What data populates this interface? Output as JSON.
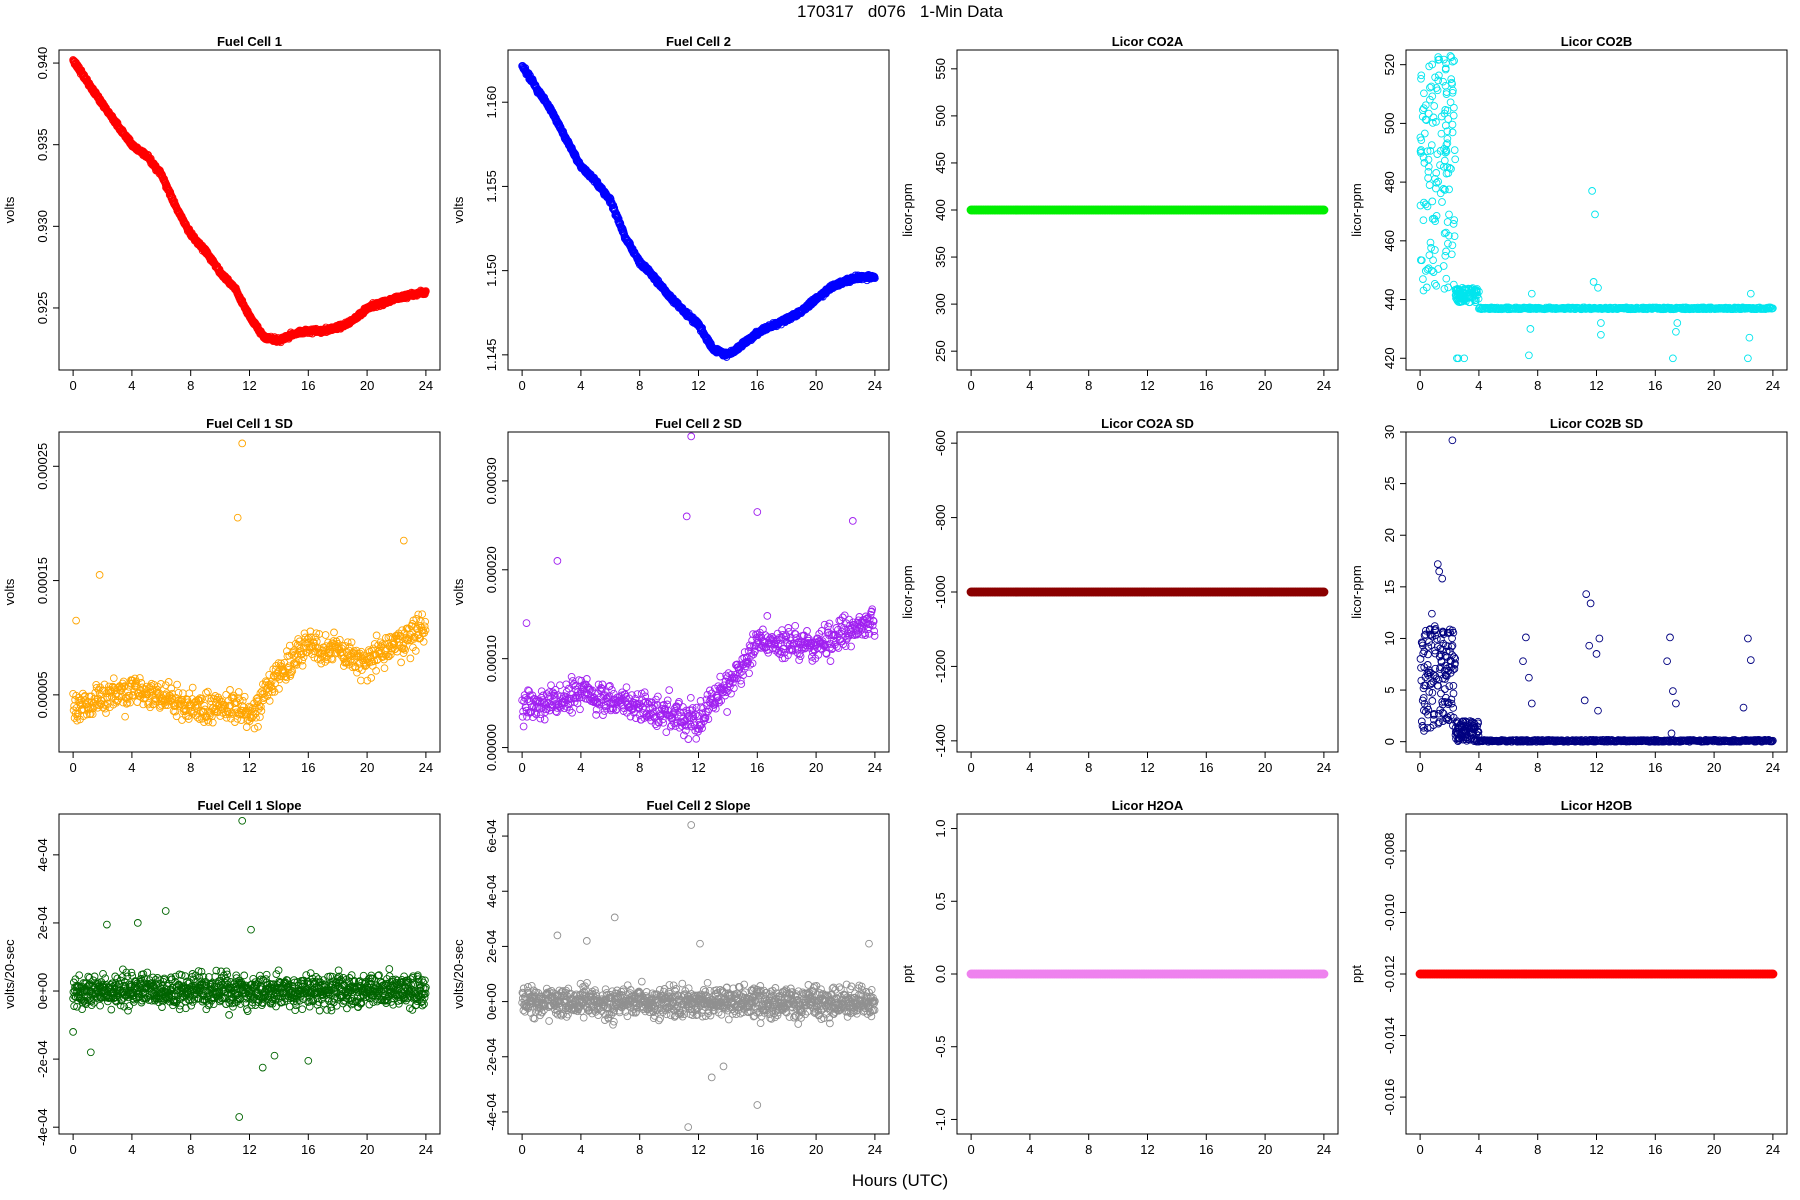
{
  "page": {
    "title": "170317   d076   1-Min Data",
    "xlabel": "Hours (UTC)"
  },
  "chart_data": [
    {
      "type": "scatter",
      "title": "Fuel Cell 1",
      "xlabel": "",
      "ylabel": "volts",
      "color": "#ff0000",
      "xlim": [
        0,
        24
      ],
      "xticks": [
        0,
        4,
        8,
        12,
        16,
        20,
        24
      ],
      "ylim": [
        0.9212,
        0.9408
      ],
      "yticks": [
        "0.925",
        "0.930",
        "0.935",
        "0.940"
      ],
      "series": [
        {
          "trend": [
            [
              0,
              0.9402
            ],
            [
              1,
              0.9388
            ],
            [
              2,
              0.9375
            ],
            [
              3,
              0.9362
            ],
            [
              4,
              0.935
            ],
            [
              5,
              0.9343
            ],
            [
              6,
              0.9332
            ],
            [
              7,
              0.9312
            ],
            [
              8,
              0.9295
            ],
            [
              9,
              0.9285
            ],
            [
              10,
              0.9272
            ],
            [
              11,
              0.9262
            ],
            [
              12,
              0.9245
            ],
            [
              13,
              0.9232
            ],
            [
              14,
              0.923
            ],
            [
              15,
              0.9234
            ],
            [
              16,
              0.9236
            ],
            [
              17,
              0.9236
            ],
            [
              18,
              0.9238
            ],
            [
              19,
              0.9242
            ],
            [
              20,
              0.925
            ],
            [
              21,
              0.9253
            ],
            [
              22,
              0.9256
            ],
            [
              23,
              0.9258
            ],
            [
              24,
              0.926
            ]
          ],
          "noise": 0.00018
        }
      ]
    },
    {
      "type": "scatter",
      "title": "Fuel Cell 2",
      "xlabel": "",
      "ylabel": "volts",
      "color": "#0000ff",
      "xlim": [
        0,
        24
      ],
      "xticks": [
        0,
        4,
        8,
        12,
        16,
        20,
        24
      ],
      "ylim": [
        1.1441,
        1.1631
      ],
      "yticks": [
        "1.145",
        "1.150",
        "1.155",
        "1.160"
      ],
      "series": [
        {
          "trend": [
            [
              0,
              1.1622
            ],
            [
              1,
              1.1608
            ],
            [
              2,
              1.1595
            ],
            [
              3,
              1.1578
            ],
            [
              4,
              1.1562
            ],
            [
              5,
              1.1553
            ],
            [
              6,
              1.1542
            ],
            [
              7,
              1.152
            ],
            [
              8,
              1.1505
            ],
            [
              9,
              1.1496
            ],
            [
              10,
              1.1485
            ],
            [
              11,
              1.1476
            ],
            [
              12,
              1.1468
            ],
            [
              13,
              1.1453
            ],
            [
              14,
              1.145
            ],
            [
              15,
              1.1456
            ],
            [
              16,
              1.1463
            ],
            [
              17,
              1.1467
            ],
            [
              18,
              1.1471
            ],
            [
              19,
              1.1476
            ],
            [
              20,
              1.1483
            ],
            [
              21,
              1.149
            ],
            [
              22,
              1.1494
            ],
            [
              23,
              1.1496
            ],
            [
              24,
              1.1496
            ]
          ],
          "noise": 0.00018
        }
      ]
    },
    {
      "type": "scatter",
      "title": "Licor CO2A",
      "xlabel": "",
      "ylabel": "licor-ppm",
      "color": "#00ee00",
      "xlim": [
        0,
        24
      ],
      "xticks": [
        0,
        4,
        8,
        12,
        16,
        20,
        24
      ],
      "ylim": [
        230,
        570
      ],
      "yticks": [
        "250",
        "300",
        "350",
        "400",
        "450",
        "500",
        "550"
      ],
      "series": [
        {
          "constant": 400,
          "size": "large"
        }
      ]
    },
    {
      "type": "scatter",
      "title": "Licor CO2B",
      "xlabel": "",
      "ylabel": "licor-ppm",
      "color": "#00e5ee",
      "xlim": [
        0,
        24
      ],
      "xticks": [
        0,
        4,
        8,
        12,
        16,
        20,
        24
      ],
      "ylim": [
        416,
        525
      ],
      "yticks": [
        "420",
        "440",
        "460",
        "480",
        "500",
        "520"
      ],
      "series": [
        {
          "baseline": 437,
          "burst": [
            0,
            2.4,
            441,
            523
          ],
          "settle": [
            2.4,
            4.0,
            439,
            444
          ],
          "spikes": [
            [
              3.0,
              420
            ],
            [
              7.4,
              421
            ],
            [
              7.5,
              430
            ],
            [
              7.6,
              442
            ],
            [
              11.7,
              477
            ],
            [
              11.9,
              469
            ],
            [
              11.8,
              446
            ],
            [
              12.1,
              444
            ],
            [
              12.3,
              432
            ],
            [
              12.3,
              428
            ],
            [
              17.2,
              420
            ],
            [
              17.4,
              429
            ],
            [
              17.5,
              432
            ],
            [
              22.3,
              420
            ],
            [
              22.4,
              427
            ],
            [
              22.5,
              442
            ],
            [
              2.5,
              420
            ],
            [
              2.6,
              420
            ]
          ]
        }
      ]
    },
    {
      "type": "scatter",
      "title": "Fuel Cell 1 SD",
      "xlabel": "",
      "ylabel": "volts",
      "color": "#ffa500",
      "xlim": [
        0,
        24
      ],
      "xticks": [
        0,
        4,
        8,
        12,
        16,
        20,
        24
      ],
      "ylim": [
        0.0,
        0.00028
      ],
      "yticks": [
        "0.00005",
        "0.00015",
        "0.00025"
      ],
      "series": [
        {
          "trend": [
            [
              0,
              4e-05
            ],
            [
              4,
              5.5e-05
            ],
            [
              8,
              4e-05
            ],
            [
              11,
              4e-05
            ],
            [
              12,
              3e-05
            ],
            [
              14,
              7e-05
            ],
            [
              16,
              9.5e-05
            ],
            [
              20,
              8e-05
            ],
            [
              24,
              0.00011
            ]
          ],
          "noise": 2.2e-05,
          "outliers": [
            [
              11.5,
              0.00027
            ],
            [
              11.2,
              0.000205
            ],
            [
              22.5,
              0.000185
            ],
            [
              1.8,
              0.000155
            ],
            [
              0.2,
              0.000115
            ]
          ]
        }
      ]
    },
    {
      "type": "scatter",
      "title": "Fuel Cell 2 SD",
      "xlabel": "",
      "ylabel": "volts",
      "color": "#a020f0",
      "xlim": [
        0,
        24
      ],
      "xticks": [
        0,
        4,
        8,
        12,
        16,
        20,
        24
      ],
      "ylim": [
        -5e-06,
        0.000355
      ],
      "yticks": [
        "0.00000",
        "0.00010",
        "0.00020",
        "0.00030"
      ],
      "series": [
        {
          "trend": [
            [
              0,
              4.5e-05
            ],
            [
              4,
              6e-05
            ],
            [
              8,
              4.5e-05
            ],
            [
              12,
              3e-05
            ],
            [
              14,
              7e-05
            ],
            [
              16,
              0.00012
            ],
            [
              20,
              0.000115
            ],
            [
              24,
              0.00014
            ]
          ],
          "noise": 2.8e-05,
          "outliers": [
            [
              11.5,
              0.00035
            ],
            [
              11.2,
              0.00026
            ],
            [
              16.0,
              0.000265
            ],
            [
              22.5,
              0.000255
            ],
            [
              2.4,
              0.00021
            ],
            [
              0.3,
              0.00014
            ]
          ]
        }
      ]
    },
    {
      "type": "scatter",
      "title": "Licor CO2A SD",
      "xlabel": "",
      "ylabel": "licor-ppm",
      "color": "#8b0000",
      "xlim": [
        0,
        24
      ],
      "xticks": [
        0,
        4,
        8,
        12,
        16,
        20,
        24
      ],
      "ylim": [
        -1430,
        -570
      ],
      "yticks": [
        "-1400",
        "-1200",
        "-1000",
        "-800",
        "-600"
      ],
      "series": [
        {
          "constant": -1000,
          "size": "large"
        }
      ]
    },
    {
      "type": "scatter",
      "title": "Licor CO2B SD",
      "xlabel": "",
      "ylabel": "licor-ppm",
      "color": "#000080",
      "xlim": [
        0,
        24
      ],
      "xticks": [
        0,
        4,
        8,
        12,
        16,
        20,
        24
      ],
      "ylim": [
        -1,
        30
      ],
      "yticks": [
        "0",
        "5",
        "10",
        "15",
        "20",
        "25",
        "30"
      ],
      "series": [
        {
          "baseline": 0.08,
          "burst": [
            0,
            2.4,
            0.5,
            11
          ],
          "settle": [
            2.4,
            4.0,
            0.0,
            2.0
          ],
          "spikes": [
            [
              2.2,
              29.2
            ],
            [
              1.2,
              17.2
            ],
            [
              1.3,
              16.5
            ],
            [
              1.5,
              15.8
            ],
            [
              0.8,
              12.4
            ],
            [
              1.0,
              11.2
            ],
            [
              11.3,
              14.3
            ],
            [
              11.6,
              13.4
            ],
            [
              11.5,
              9.3
            ],
            [
              12.2,
              10.0
            ],
            [
              12.0,
              8.5
            ],
            [
              11.2,
              4.0
            ],
            [
              12.1,
              3.0
            ],
            [
              7.2,
              10.1
            ],
            [
              7.0,
              7.8
            ],
            [
              7.4,
              6.2
            ],
            [
              7.6,
              3.7
            ],
            [
              17.0,
              10.1
            ],
            [
              16.8,
              7.8
            ],
            [
              17.2,
              4.9
            ],
            [
              17.4,
              3.7
            ],
            [
              22.3,
              10.0
            ],
            [
              22.5,
              7.9
            ],
            [
              22.0,
              3.3
            ],
            [
              17.1,
              0.8
            ]
          ]
        }
      ]
    },
    {
      "type": "scatter",
      "title": "Fuel Cell 1 Slope",
      "xlabel": "",
      "ylabel": "volts/20-sec",
      "color": "#006400",
      "xlim": [
        0,
        24
      ],
      "xticks": [
        0,
        4,
        8,
        12,
        16,
        20,
        24
      ],
      "ylim": [
        -0.00042,
        0.00052
      ],
      "yticks": [
        "-4e-04",
        "-2e-04",
        "0e+00",
        "2e-04",
        "4e-04"
      ],
      "series": [
        {
          "constant": 0.0,
          "noise": 6e-05,
          "outliers": [
            [
              11.5,
              0.0005
            ],
            [
              11.3,
              -0.00037
            ],
            [
              6.3,
              0.000235
            ],
            [
              12.1,
              0.00018
            ],
            [
              4.4,
              0.0002
            ],
            [
              2.3,
              0.000195
            ],
            [
              12.9,
              -0.000225
            ],
            [
              16.0,
              -0.000205
            ],
            [
              13.7,
              -0.00019
            ],
            [
              1.2,
              -0.00018
            ],
            [
              0.0,
              -0.00012
            ]
          ]
        }
      ]
    },
    {
      "type": "scatter",
      "title": "Fuel Cell 2 Slope",
      "xlabel": "",
      "ylabel": "volts/20-sec",
      "color": "#909090",
      "xlim": [
        0,
        24
      ],
      "xticks": [
        0,
        4,
        8,
        12,
        16,
        20,
        24
      ],
      "ylim": [
        -0.00048,
        0.00068
      ],
      "yticks": [
        "-4e-04",
        "-2e-04",
        "0e+00",
        "2e-04",
        "4e-04",
        "6e-04"
      ],
      "series": [
        {
          "constant": 0.0,
          "noise": 7e-05,
          "outliers": [
            [
              11.5,
              0.00064
            ],
            [
              11.3,
              -0.000455
            ],
            [
              6.3,
              0.000305
            ],
            [
              16.0,
              -0.000375
            ],
            [
              12.9,
              -0.000275
            ],
            [
              13.7,
              -0.000235
            ],
            [
              2.4,
              0.00024
            ],
            [
              4.4,
              0.00022
            ],
            [
              12.1,
              0.00021
            ],
            [
              23.6,
              0.00021
            ]
          ]
        }
      ]
    },
    {
      "type": "scatter",
      "title": "Licor H2OA",
      "xlabel": "",
      "ylabel": "ppt",
      "color": "#ee82ee",
      "xlim": [
        0,
        24
      ],
      "xticks": [
        0,
        4,
        8,
        12,
        16,
        20,
        24
      ],
      "ylim": [
        -1.1,
        1.1
      ],
      "yticks": [
        "-1.0",
        "-0.5",
        "0.0",
        "0.5",
        "1.0"
      ],
      "series": [
        {
          "constant": 0.0,
          "size": "large"
        }
      ]
    },
    {
      "type": "scatter",
      "title": "Licor H2OB",
      "xlabel": "",
      "ylabel": "ppt",
      "color": "#ff0000",
      "xlim": [
        0,
        24
      ],
      "xticks": [
        0,
        4,
        8,
        12,
        16,
        20,
        24
      ],
      "ylim": [
        -0.0172,
        -0.0068
      ],
      "yticks": [
        "-0.016",
        "-0.014",
        "-0.012",
        "-0.010",
        "-0.008"
      ],
      "series": [
        {
          "constant": -0.012,
          "size": "large"
        }
      ]
    }
  ]
}
